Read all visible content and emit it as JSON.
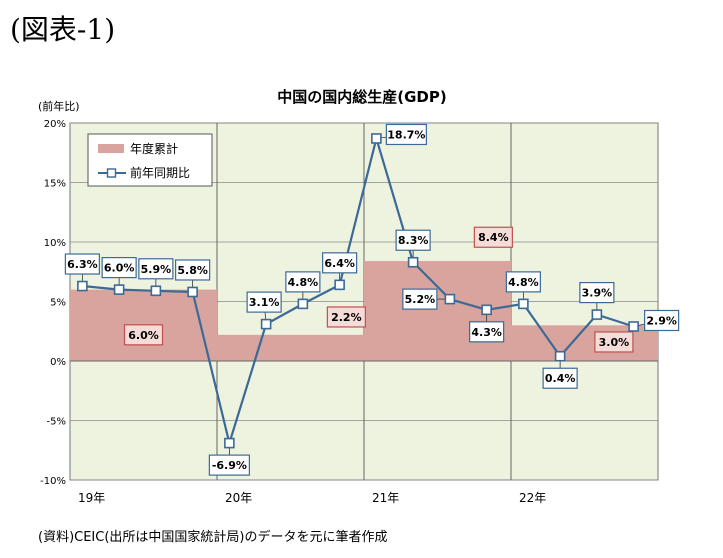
{
  "figure_label": "(図表-1)",
  "source_note": "(資料)CEIC(出所は中国国家統計局)のデータを元に筆者作成",
  "chart_data": {
    "type": "bar+line",
    "title": "中国の国内総生産(GDP)",
    "ylabel": "(前年比)",
    "ylim": [
      -10,
      20
    ],
    "y_ticks": [
      "20%",
      "15%",
      "10%",
      "5%",
      "0%",
      "-5%",
      "-10%"
    ],
    "grid": true,
    "legend_position": "top-left",
    "year_labels": [
      "19年",
      "20年",
      "21年",
      "22年"
    ],
    "annual_series": {
      "name": "年度累計",
      "years": [
        "19年",
        "20年",
        "21年",
        "22年"
      ],
      "values": [
        6.0,
        2.2,
        8.4,
        3.0
      ],
      "labels": [
        "6.0%",
        "2.2%",
        "8.4%",
        "3.0%"
      ],
      "color": "#d9a49d"
    },
    "quarterly_series": {
      "name": "前年同期比",
      "x": [
        "19年Q1",
        "19年Q2",
        "19年Q3",
        "19年Q4",
        "20年Q1",
        "20年Q2",
        "20年Q3",
        "20年Q4",
        "21年Q1",
        "21年Q2",
        "21年Q3",
        "21年Q4",
        "22年Q1",
        "22年Q2",
        "22年Q3",
        "22年Q4"
      ],
      "values": [
        6.3,
        6.0,
        5.9,
        5.8,
        -6.9,
        3.1,
        4.8,
        6.4,
        18.7,
        8.3,
        5.2,
        4.3,
        4.8,
        0.4,
        3.9,
        2.9
      ],
      "labels": [
        "6.3%",
        "6.0%",
        "5.9%",
        "5.8%",
        "-6.9%",
        "3.1%",
        "4.8%",
        "6.4%",
        "18.7%",
        "8.3%",
        "5.2%",
        "4.3%",
        "4.8%",
        "0.4%",
        "3.9%",
        "2.9%"
      ],
      "color": "#3b6a96"
    },
    "colors": {
      "plot_background": "#eef3df",
      "grid": "#8a8a8a",
      "annual_label_border": "#c0504d",
      "quarter_label_border": "#3b6a96"
    }
  }
}
